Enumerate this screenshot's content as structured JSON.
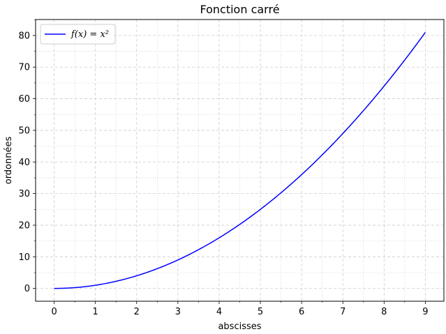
{
  "chart_data": {
    "type": "line",
    "title": "Fonction carré",
    "xlabel": "abscisses",
    "ylabel": "ordonnées",
    "xlim": [
      -0.45,
      9.45
    ],
    "ylim": [
      -4.05,
      85.05
    ],
    "x_ticks": [
      0,
      1,
      2,
      3,
      4,
      5,
      6,
      7,
      8,
      9
    ],
    "y_ticks": [
      0,
      10,
      20,
      30,
      40,
      50,
      60,
      70,
      80
    ],
    "x_minor_step": 0.5,
    "y_minor_step": 5,
    "grid": true,
    "legend_position": "top-left",
    "series": [
      {
        "name": "f(x) = x²",
        "color": "#0000ff",
        "x": [
          0,
          0.5,
          1,
          1.5,
          2,
          2.5,
          3,
          3.5,
          4,
          4.5,
          5,
          5.5,
          6,
          6.5,
          7,
          7.5,
          8,
          8.5,
          9
        ],
        "y": [
          0,
          0.25,
          1,
          2.25,
          4,
          6.25,
          9,
          12.25,
          16,
          20.25,
          25,
          30.25,
          36,
          42.25,
          49,
          56.25,
          64,
          72.25,
          81
        ]
      }
    ]
  }
}
